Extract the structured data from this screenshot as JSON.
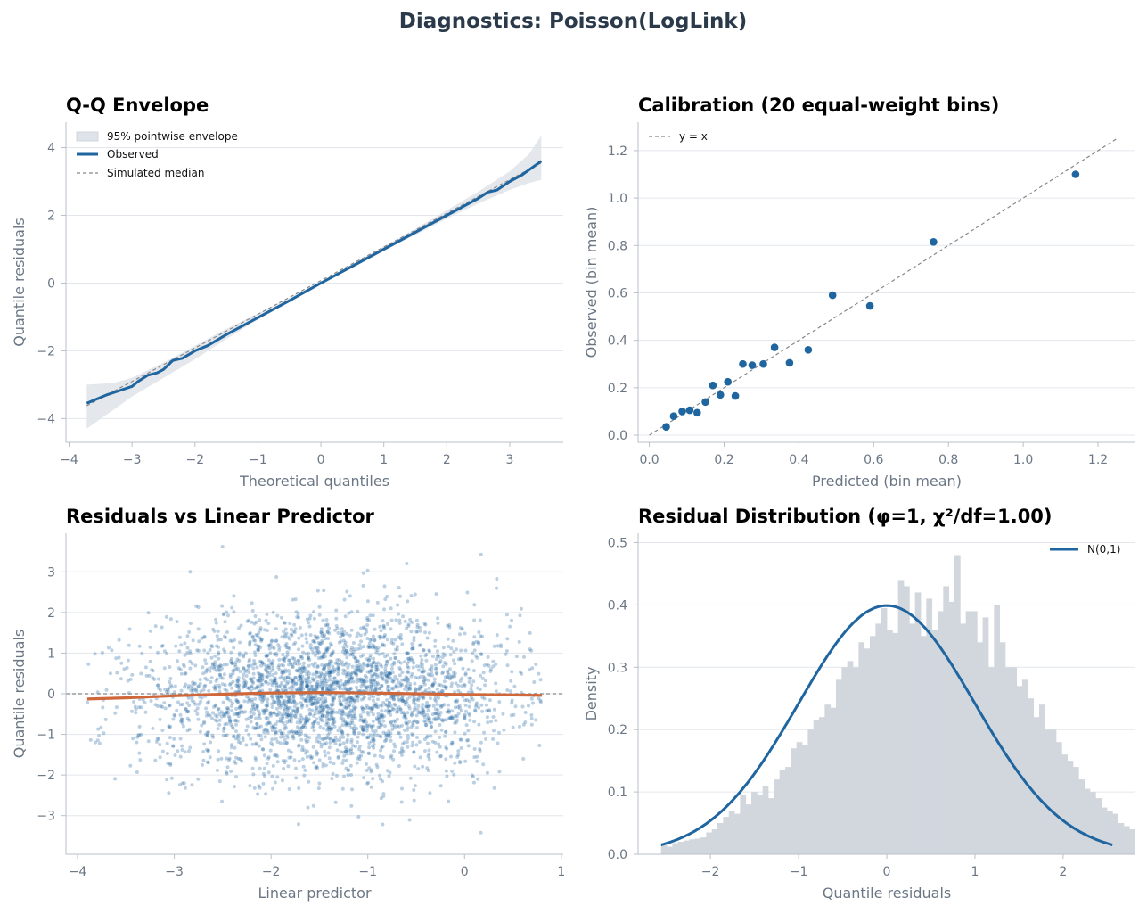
{
  "figure": {
    "title": "Diagnostics: Poisson(LogLink)"
  },
  "colors": {
    "primary": "#1f65a0",
    "envelope": "#dfe4ea",
    "reference": "#888888",
    "smooth": "#d0673a",
    "histogram": "#d2d7de",
    "title": "#2b3a4a",
    "axis_text": "#6b7785"
  },
  "chart_data": [
    {
      "type": "line",
      "title": "Q-Q Envelope",
      "xlabel": "Theoretical quantiles",
      "ylabel": "Quantile residuals",
      "xlim": [
        -4.05,
        3.85
      ],
      "ylim": [
        -4.7,
        4.75
      ],
      "xticks": [
        -4,
        -3,
        -2,
        -1,
        0,
        1,
        2,
        3
      ],
      "yticks": [
        -4,
        -2,
        0,
        2,
        4
      ],
      "grid": "horizontal",
      "legend": "top-left",
      "legend_entries": [
        "95% pointwise envelope",
        "Observed",
        "Simulated median"
      ],
      "series": [
        {
          "name": "95% pointwise envelope",
          "kind": "band",
          "x": [
            -3.72,
            -3.3,
            -3.0,
            -2.5,
            -2.0,
            -1.5,
            -1.0,
            0.0,
            1.0,
            1.5,
            2.0,
            2.5,
            3.0,
            3.3,
            3.5
          ],
          "lower": [
            -4.3,
            -3.75,
            -3.35,
            -2.8,
            -2.25,
            -1.65,
            -1.08,
            -0.04,
            0.95,
            1.42,
            1.9,
            2.35,
            2.75,
            2.95,
            3.05
          ],
          "upper": [
            -3.0,
            -2.95,
            -2.8,
            -2.35,
            -1.85,
            -1.35,
            -0.9,
            0.04,
            1.08,
            1.6,
            2.15,
            2.7,
            3.3,
            3.8,
            4.35
          ]
        },
        {
          "name": "Observed",
          "kind": "line",
          "x": [
            -3.72,
            -3.4,
            -3.0,
            -2.9,
            -2.75,
            -2.6,
            -2.5,
            -2.35,
            -2.2,
            -2.0,
            -1.8,
            -1.5,
            -1.2,
            -1.0,
            -0.5,
            0.0,
            0.5,
            1.0,
            1.5,
            2.0,
            2.3,
            2.5,
            2.65,
            2.8,
            3.0,
            3.2,
            3.5
          ],
          "y": [
            -3.55,
            -3.3,
            -3.05,
            -2.9,
            -2.72,
            -2.65,
            -2.55,
            -2.28,
            -2.22,
            -2.0,
            -1.85,
            -1.52,
            -1.22,
            -1.02,
            -0.52,
            0.0,
            0.5,
            1.0,
            1.5,
            2.0,
            2.3,
            2.5,
            2.68,
            2.75,
            3.0,
            3.2,
            3.6
          ]
        },
        {
          "name": "Simulated median",
          "kind": "dashed",
          "x": [
            -3.72,
            3.5
          ],
          "y": [
            -3.62,
            3.55
          ]
        }
      ]
    },
    {
      "type": "scatter",
      "title": "Calibration (20 equal-weight bins)",
      "xlabel": "Predicted (bin mean)",
      "ylabel": "Observed (bin mean)",
      "xlim": [
        -0.03,
        1.3
      ],
      "ylim": [
        -0.03,
        1.32
      ],
      "xticks": [
        0.0,
        0.2,
        0.4,
        0.6,
        0.8,
        1.0,
        1.2
      ],
      "xtick_labels": [
        "0.0",
        "0.2",
        "0.4",
        "0.6",
        "0.8",
        "1.0",
        "1.2"
      ],
      "yticks": [
        0.0,
        0.2,
        0.4,
        0.6,
        0.8,
        1.0,
        1.2
      ],
      "ytick_labels": [
        "0.0",
        "0.2",
        "0.4",
        "0.6",
        "0.8",
        "1.0",
        "1.2"
      ],
      "grid": "horizontal",
      "legend": "top-left",
      "legend_entries": [
        "y = x"
      ],
      "reference_line": {
        "name": "y = x",
        "x": [
          0.0,
          1.25
        ],
        "y": [
          0.0,
          1.25
        ]
      },
      "series": [
        {
          "x": [
            0.045,
            0.065,
            0.088,
            0.108,
            0.128,
            0.15,
            0.17,
            0.19,
            0.21,
            0.23,
            0.25,
            0.275,
            0.305,
            0.335,
            0.375,
            0.425,
            0.49,
            0.59,
            0.76,
            1.14
          ],
          "y": [
            0.035,
            0.08,
            0.1,
            0.105,
            0.095,
            0.14,
            0.21,
            0.17,
            0.225,
            0.165,
            0.3,
            0.295,
            0.3,
            0.37,
            0.305,
            0.36,
            0.59,
            0.545,
            0.815,
            1.1
          ]
        }
      ]
    },
    {
      "type": "scatter",
      "title": "Residuals vs Linear Predictor",
      "xlabel": "Linear predictor",
      "ylabel": "Quantile residuals",
      "xlim": [
        -4.12,
        1.02
      ],
      "ylim": [
        -3.95,
        3.95
      ],
      "xticks": [
        -4,
        -3,
        -2,
        -1,
        0,
        1
      ],
      "yticks": [
        -3,
        -2,
        -1,
        0,
        1,
        2,
        3
      ],
      "grid": "horizontal",
      "zero_line": 0,
      "points_summary": {
        "count": 3000,
        "x_center": -1.4,
        "x_spread": 0.95,
        "x_range": [
          -3.9,
          0.8
        ],
        "y_spread": 1.0
      },
      "smooth": {
        "x": [
          -3.9,
          -3.5,
          -3.0,
          -2.5,
          -2.0,
          -1.5,
          -1.0,
          -0.5,
          0.0,
          0.5,
          0.8
        ],
        "y": [
          -0.13,
          -0.1,
          -0.05,
          -0.01,
          0.02,
          0.03,
          0.02,
          0.0,
          -0.02,
          -0.03,
          -0.04
        ]
      }
    },
    {
      "type": "bar",
      "title": "Residual Distribution (φ=1, χ²/df=1.00)",
      "xlabel": "Quantile residuals",
      "ylabel": "Density",
      "xlim": [
        -2.82,
        2.82
      ],
      "ylim": [
        0.0,
        0.515
      ],
      "xticks": [
        -2,
        -1,
        0,
        1,
        2
      ],
      "yticks": [
        0.0,
        0.1,
        0.2,
        0.3,
        0.4,
        0.5
      ],
      "ytick_labels": [
        "0.0",
        "0.1",
        "0.2",
        "0.3",
        "0.4",
        "0.5"
      ],
      "grid": "horizontal",
      "legend": "top-right",
      "legend_entries": [
        "N(0,1)"
      ],
      "histogram": {
        "bin_start": -2.56,
        "bin_width": 0.064,
        "density": [
          0.015,
          0.012,
          0.018,
          0.02,
          0.022,
          0.024,
          0.025,
          0.027,
          0.035,
          0.04,
          0.05,
          0.06,
          0.07,
          0.065,
          0.095,
          0.08,
          0.1,
          0.095,
          0.11,
          0.09,
          0.12,
          0.135,
          0.14,
          0.17,
          0.18,
          0.175,
          0.2,
          0.215,
          0.22,
          0.24,
          0.235,
          0.28,
          0.3,
          0.31,
          0.3,
          0.34,
          0.33,
          0.35,
          0.37,
          0.395,
          0.36,
          0.355,
          0.44,
          0.43,
          0.37,
          0.42,
          0.35,
          0.41,
          0.36,
          0.39,
          0.43,
          0.405,
          0.48,
          0.37,
          0.39,
          0.39,
          0.34,
          0.38,
          0.3,
          0.4,
          0.34,
          0.3,
          0.3,
          0.27,
          0.28,
          0.25,
          0.22,
          0.24,
          0.2,
          0.2,
          0.18,
          0.16,
          0.15,
          0.14,
          0.12,
          0.105,
          0.1,
          0.09,
          0.075,
          0.07,
          0.065,
          0.05,
          0.045,
          0.04,
          0.03
        ]
      },
      "series": [
        {
          "name": "N(0,1)",
          "kind": "normal_pdf",
          "mean": 0,
          "sd": 1,
          "x_range": [
            -2.56,
            2.56
          ]
        }
      ]
    }
  ]
}
